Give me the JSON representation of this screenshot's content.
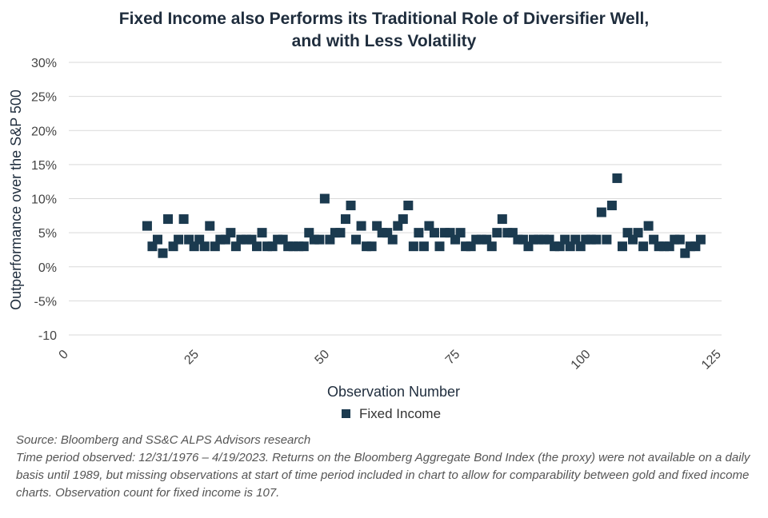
{
  "chart_data": {
    "type": "scatter",
    "title": [
      "Fixed Income also Performs its Traditional Role of Diversifier Well,",
      "and with Less Volatility"
    ],
    "xlabel": "Observation Number",
    "ylabel": "Outperformance over the S&P 500",
    "xlim": [
      0,
      125
    ],
    "ylim": [
      -10,
      30
    ],
    "x_ticks": [
      0,
      25,
      50,
      75,
      100,
      125
    ],
    "x_tick_labels": [
      "0",
      "25",
      "50",
      "75",
      "100",
      "125"
    ],
    "y_ticks": [
      -10,
      -5,
      0,
      5,
      10,
      15,
      20,
      25,
      30
    ],
    "y_tick_labels": [
      "-10",
      "-5%",
      "0%",
      "5%",
      "10%",
      "15%",
      "20%",
      "25%",
      "30%"
    ],
    "grid": true,
    "legend_position": "bottom-center",
    "series": [
      {
        "name": "Fixed Income",
        "color": "#1b3a4f",
        "x": [
          15,
          16,
          17,
          18,
          19,
          20,
          21,
          22,
          23,
          24,
          25,
          26,
          27,
          28,
          29,
          30,
          31,
          32,
          33,
          34,
          35,
          36,
          37,
          38,
          39,
          40,
          41,
          42,
          43,
          44,
          45,
          46,
          47,
          48,
          49,
          50,
          51,
          52,
          53,
          54,
          55,
          56,
          57,
          58,
          59,
          60,
          61,
          62,
          63,
          64,
          65,
          66,
          67,
          68,
          69,
          70,
          71,
          72,
          73,
          74,
          75,
          76,
          77,
          78,
          79,
          80,
          81,
          82,
          83,
          84,
          85,
          86,
          87,
          88,
          89,
          90,
          91,
          92,
          93,
          94,
          95,
          96,
          97,
          98,
          99,
          100,
          101,
          102,
          103,
          104,
          105,
          106,
          107,
          108,
          109,
          110,
          111,
          112,
          113,
          114,
          115,
          116,
          117,
          118,
          119,
          120,
          121
        ],
        "y": [
          6,
          3,
          4,
          2,
          7,
          3,
          4,
          7,
          4,
          3,
          4,
          3,
          6,
          3,
          4,
          4,
          5,
          3,
          4,
          4,
          4,
          3,
          5,
          3,
          3,
          4,
          4,
          3,
          3,
          3,
          3,
          5,
          4,
          4,
          10,
          4,
          5,
          5,
          7,
          9,
          4,
          6,
          3,
          3,
          6,
          5,
          5,
          4,
          6,
          7,
          9,
          3,
          5,
          3,
          6,
          5,
          3,
          5,
          5,
          4,
          5,
          3,
          3,
          4,
          4,
          4,
          3,
          5,
          7,
          5,
          5,
          4,
          4,
          3,
          4,
          4,
          4,
          4,
          3,
          3,
          4,
          3,
          4,
          3,
          4,
          4,
          4,
          8,
          4,
          9,
          13,
          3,
          5,
          4,
          5,
          3,
          6,
          4,
          3,
          3,
          3,
          4,
          4,
          2,
          3,
          3,
          4
        ]
      }
    ]
  },
  "source": {
    "line1": "Source: Bloomberg and SS&C ALPS Advisors research",
    "line2": "Time period observed: 12/31/1976 – 4/19/2023. Returns on the Bloomberg Aggregate Bond Index (the proxy) were not available on a daily basis until 1989, but missing observations at start of time period included in chart to allow for comparability between gold and fixed income charts. Observation count for fixed income is 107."
  }
}
